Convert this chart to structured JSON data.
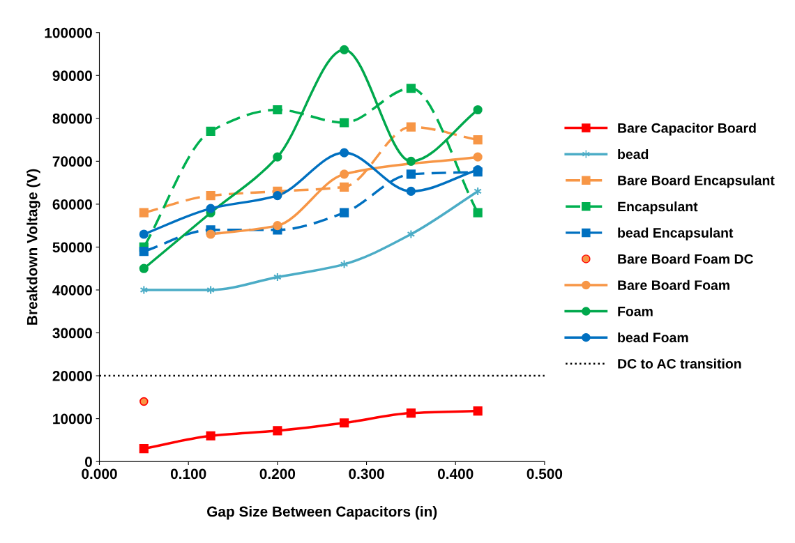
{
  "chart_data": {
    "type": "line",
    "xlabel": "Gap Size Between Capacitors (in)",
    "ylabel": "Breakdown Voltage (V)",
    "x": [
      0.05,
      0.125,
      0.2,
      0.275,
      0.35,
      0.425
    ],
    "xlim": [
      0,
      0.5
    ],
    "xticks": [
      {
        "value": 0,
        "label": "0.000"
      },
      {
        "value": 0.1,
        "label": "0.100"
      },
      {
        "value": 0.2,
        "label": "0.200"
      },
      {
        "value": 0.3,
        "label": "0.300"
      },
      {
        "value": 0.4,
        "label": "0.400"
      },
      {
        "value": 0.5,
        "label": "0.500"
      }
    ],
    "ylim": [
      0,
      100000
    ],
    "yticks": [
      0,
      10000,
      20000,
      30000,
      40000,
      50000,
      60000,
      70000,
      80000,
      90000,
      100000
    ],
    "grid": false,
    "legend": "right",
    "series": [
      {
        "name": "Bare Capacitor Board",
        "color": "#ff0000",
        "marker": "square",
        "line_style": "solid",
        "values": [
          3000,
          6000,
          7200,
          9000,
          11300,
          11800
        ]
      },
      {
        "name": "bead",
        "color": "#4bacc6",
        "marker": "cross",
        "line_style": "solid",
        "values": [
          40000,
          40000,
          43000,
          46000,
          53000,
          63000
        ]
      },
      {
        "name": "Bare Board Encapsulant",
        "color": "#f79646",
        "marker": "square",
        "line_style": "dashed",
        "values": [
          58000,
          62000,
          63000,
          64000,
          78000,
          75000
        ]
      },
      {
        "name": "Encapsulant",
        "color": "#00b050",
        "marker": "square",
        "line_style": "dashed",
        "values": [
          50000,
          77000,
          82000,
          79000,
          87000,
          58000
        ]
      },
      {
        "name": "bead Encapsulant",
        "color": "#0070c0",
        "marker": "square",
        "line_style": "dashed",
        "values": [
          49000,
          54000,
          54000,
          58000,
          67000,
          67500
        ]
      },
      {
        "name": "Bare Board Foam DC",
        "color": "#f79646",
        "type": "scatter",
        "marker": "circle",
        "x": [
          0.05
        ],
        "values": [
          14000
        ]
      },
      {
        "name": "Bare Board Foam",
        "color": "#f79646",
        "marker": "circle",
        "line_style": "solid",
        "x": [
          0.125,
          0.2,
          0.275,
          0.425
        ],
        "values": [
          53000,
          55000,
          67000,
          71000
        ]
      },
      {
        "name": "Foam",
        "color": "#00a84c",
        "marker": "circle",
        "line_style": "solid",
        "values": [
          45000,
          58000,
          71000,
          96000,
          70000,
          82000
        ]
      },
      {
        "name": "bead Foam",
        "color": "#0070c0",
        "marker": "circle",
        "line_style": "solid",
        "values": [
          53000,
          59000,
          62000,
          72000,
          63000,
          68000
        ]
      }
    ],
    "ref_lines": [
      {
        "axis": "y",
        "value": 20000,
        "label": "DC to AC transition",
        "color": "#000000",
        "line_style": "dotted"
      }
    ]
  }
}
